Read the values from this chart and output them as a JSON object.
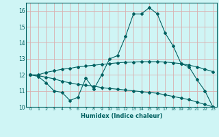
{
  "xlabel": "Humidex (Indice chaleur)",
  "bg_color": "#cff5f5",
  "grid_color": "#d9b0b0",
  "line_color": "#006060",
  "x": [
    0,
    1,
    2,
    3,
    4,
    5,
    6,
    7,
    8,
    9,
    10,
    11,
    12,
    13,
    14,
    15,
    16,
    17,
    18,
    19,
    20,
    21,
    22,
    23
  ],
  "line1": [
    12.0,
    11.9,
    11.5,
    11.0,
    10.9,
    10.4,
    10.6,
    11.8,
    11.1,
    12.0,
    13.0,
    13.2,
    14.4,
    15.8,
    15.8,
    16.2,
    15.8,
    14.6,
    13.8,
    12.7,
    12.5,
    11.7,
    11.0,
    10.0
  ],
  "line2": [
    12.0,
    12.0,
    12.15,
    12.25,
    12.35,
    12.4,
    12.5,
    12.55,
    12.6,
    12.65,
    12.7,
    12.75,
    12.78,
    12.8,
    12.82,
    12.82,
    12.82,
    12.8,
    12.75,
    12.7,
    12.6,
    12.5,
    12.35,
    12.2
  ],
  "line3": [
    12.0,
    11.95,
    11.85,
    11.75,
    11.6,
    11.5,
    11.4,
    11.35,
    11.3,
    11.2,
    11.15,
    11.1,
    11.05,
    11.0,
    10.95,
    10.9,
    10.85,
    10.75,
    10.65,
    10.55,
    10.45,
    10.3,
    10.15,
    10.0
  ],
  "ylim": [
    10,
    16.5
  ],
  "yticks": [
    10,
    11,
    12,
    13,
    14,
    15,
    16
  ],
  "xticks": [
    0,
    1,
    2,
    3,
    4,
    5,
    6,
    7,
    8,
    9,
    10,
    11,
    12,
    13,
    14,
    15,
    16,
    17,
    18,
    19,
    20,
    21,
    22,
    23
  ],
  "markersize": 2.0,
  "linewidth": 0.8
}
